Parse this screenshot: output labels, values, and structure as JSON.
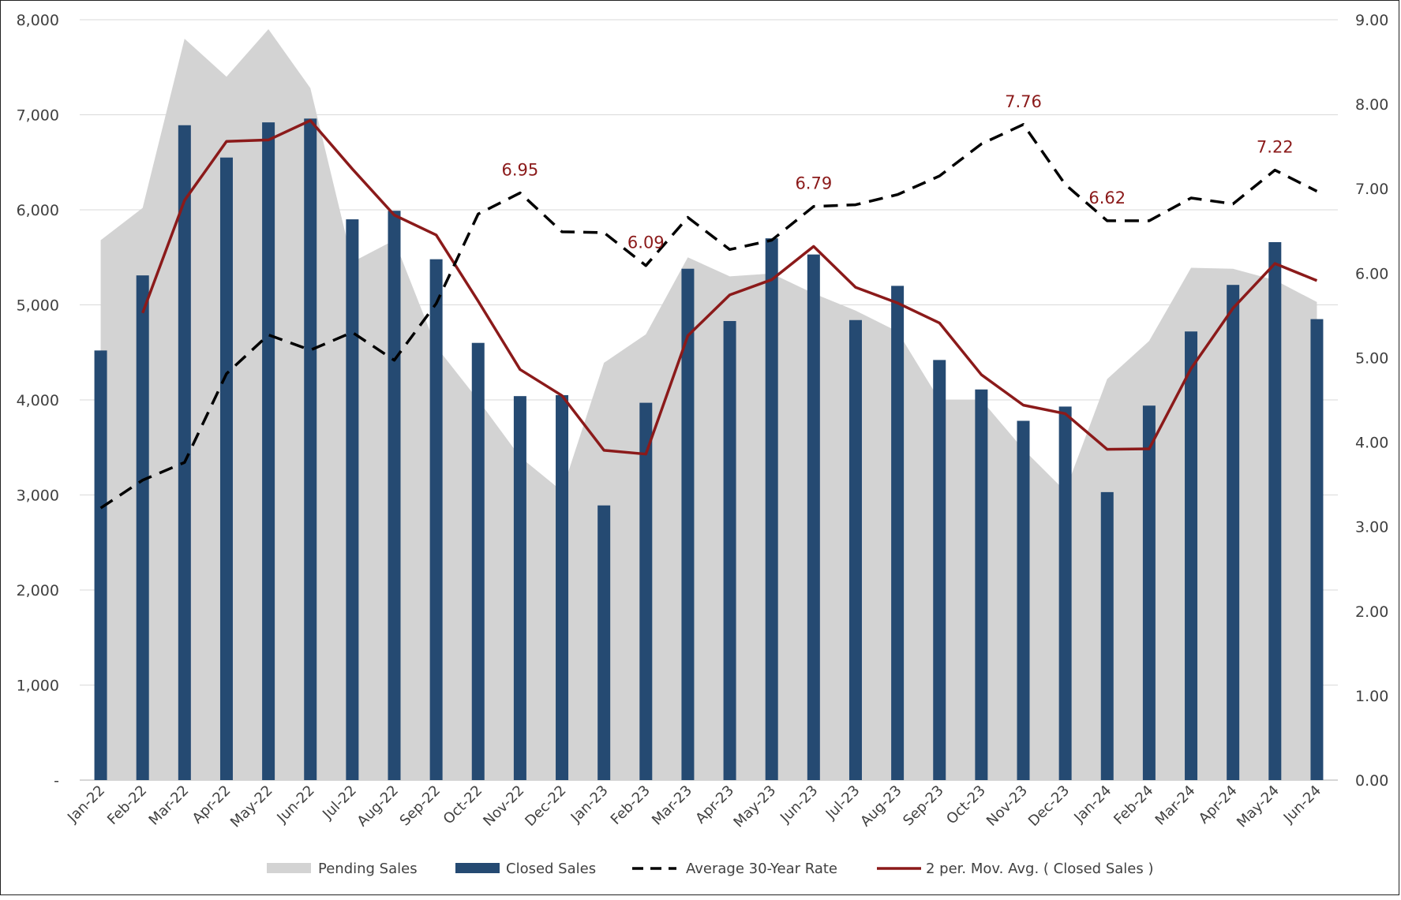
{
  "chart_data": {
    "type": "bar",
    "title": "",
    "categories": [
      "Jan-22",
      "Feb-22",
      "Mar-22",
      "Apr-22",
      "May-22",
      "Jun-22",
      "Jul-22",
      "Aug-22",
      "Sep-22",
      "Oct-22",
      "Nov-22",
      "Dec-22",
      "Jan-23",
      "Feb-23",
      "Mar-23",
      "Apr-23",
      "May-23",
      "Jun-23",
      "Jul-23",
      "Aug-23",
      "Sep-23",
      "Oct-23",
      "Nov-23",
      "Dec-23",
      "Jan-24",
      "Feb-24",
      "Mar-24",
      "Apr-24",
      "May-24",
      "Jun-24"
    ],
    "y_left": {
      "ylim": [
        0,
        8000
      ],
      "ticks": [
        0,
        1000,
        2000,
        3000,
        4000,
        5000,
        6000,
        7000,
        8000
      ],
      "tick_labels": [
        "-",
        "1,000",
        "2,000",
        "3,000",
        "4,000",
        "5,000",
        "6,000",
        "7,000",
        "8,000"
      ]
    },
    "y_right": {
      "ylim": [
        0,
        9
      ],
      "ticks": [
        0,
        1,
        2,
        3,
        4,
        5,
        6,
        7,
        8,
        9
      ],
      "tick_labels": [
        "0.00",
        "1.00",
        "2.00",
        "3.00",
        "4.00",
        "5.00",
        "6.00",
        "7.00",
        "8.00",
        "9.00"
      ]
    },
    "series": [
      {
        "name": "Pending Sales",
        "type": "area",
        "axis": "left",
        "color": "#D3D3D3",
        "values": [
          5680,
          6020,
          7800,
          7400,
          7900,
          7280,
          5450,
          5680,
          4560,
          4000,
          3400,
          3040,
          4390,
          4690,
          5500,
          5300,
          5330,
          5120,
          4940,
          4720,
          4000,
          4000,
          3480,
          3040,
          4220,
          4620,
          5390,
          5380,
          5260,
          5030
        ]
      },
      {
        "name": "Closed Sales",
        "type": "bar",
        "axis": "left",
        "color": "#254A72",
        "values": [
          4520,
          5310,
          6890,
          6550,
          6920,
          6960,
          5900,
          5990,
          5480,
          4600,
          4040,
          4050,
          2890,
          3970,
          5380,
          4830,
          5700,
          5530,
          4840,
          5200,
          4420,
          4110,
          3780,
          3930,
          3030,
          3940,
          4720,
          5210,
          5660,
          4850
        ]
      },
      {
        "name": "Average 30-Year Rate",
        "type": "line",
        "axis": "right",
        "style": "dashed",
        "color": "#000000",
        "values": [
          3.22,
          3.55,
          3.76,
          4.81,
          5.27,
          5.09,
          5.3,
          4.97,
          5.64,
          6.7,
          6.95,
          6.49,
          6.48,
          6.09,
          6.66,
          6.28,
          6.39,
          6.79,
          6.81,
          6.93,
          7.15,
          7.53,
          7.76,
          7.05,
          6.62,
          6.62,
          6.89,
          6.82,
          7.22,
          6.97
        ]
      },
      {
        "name": "2 per. Mov. Avg. (Closed Sales)",
        "type": "line",
        "axis": "left",
        "color": "#8B1A1A",
        "values": [
          null,
          4915,
          6100,
          6720,
          6735,
          6940,
          6430,
          5945,
          5735,
          5040,
          4320,
          4045,
          3470,
          3430,
          4675,
          5105,
          5265,
          5615,
          5185,
          5020,
          4810,
          4265,
          3945,
          3855,
          3480,
          3485,
          4330,
          4965,
          5435,
          5255
        ]
      }
    ],
    "annotations": [
      {
        "category": "Nov-22",
        "value": 6.95,
        "label": "6.95"
      },
      {
        "category": "Feb-23",
        "value": 6.09,
        "label": "6.09"
      },
      {
        "category": "Jun-23",
        "value": 6.79,
        "label": "6.79"
      },
      {
        "category": "Nov-23",
        "value": 7.76,
        "label": "7.76"
      },
      {
        "category": "Jan-24",
        "value": 6.62,
        "label": "6.62"
      },
      {
        "category": "May-24",
        "value": 7.22,
        "label": "7.22"
      }
    ],
    "legend": {
      "placement": "bottom",
      "entries": [
        "Pending Sales",
        "Closed Sales",
        "Average 30-Year Rate",
        "2 per. Mov. Avg. ( Closed Sales )"
      ]
    },
    "colors": {
      "gridline": "#D9D9D9",
      "axis_line": "#BFBFBF",
      "tick_text": "#404040",
      "annotation_text": "#8B1A1A"
    }
  }
}
